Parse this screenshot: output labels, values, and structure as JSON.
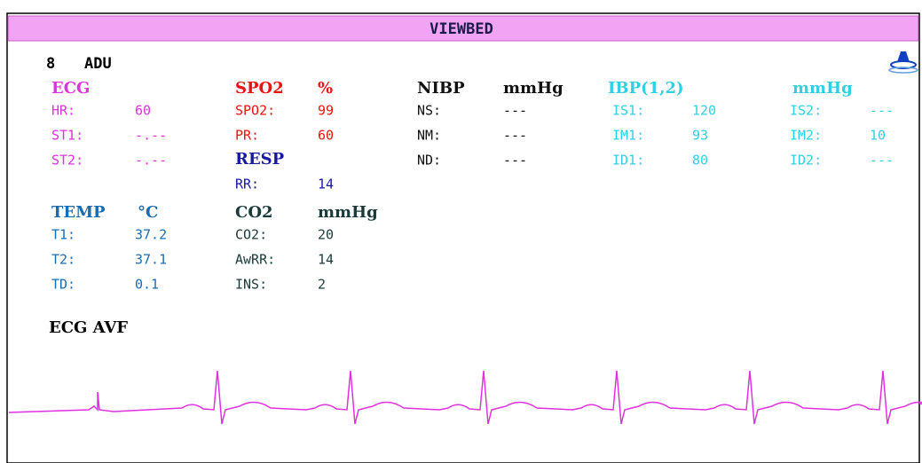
{
  "header": {
    "title": "VIEWBED"
  },
  "bed": {
    "number": "8",
    "category": "ADU"
  },
  "ecg": {
    "title": "ECG",
    "rows": [
      [
        "HR:",
        "60"
      ],
      [
        "ST1:",
        "-.--"
      ],
      [
        "ST2:",
        "-.--"
      ]
    ]
  },
  "spo2": {
    "title": "SPO2",
    "unit": "%",
    "rows": [
      [
        "SPO2:",
        "99"
      ],
      [
        "PR:",
        "60"
      ]
    ]
  },
  "resp": {
    "title": "RESP",
    "rows": [
      [
        "RR:",
        "14"
      ]
    ]
  },
  "temp": {
    "title": "TEMP",
    "unit": "°C",
    "rows": [
      [
        "T1:",
        "37.2"
      ],
      [
        "T2:",
        "37.1"
      ],
      [
        "TD:",
        "0.1"
      ]
    ]
  },
  "co2": {
    "title": "CO2",
    "unit": "mmHg",
    "rows": [
      [
        "CO2:",
        "20"
      ],
      [
        "AwRR:",
        "14"
      ],
      [
        "INS:",
        "2"
      ]
    ]
  },
  "nibp": {
    "title": "NIBP",
    "unit": "mmHg",
    "rows": [
      [
        "NS:",
        "---"
      ],
      [
        "NM:",
        "---"
      ],
      [
        "ND:",
        "---"
      ]
    ]
  },
  "ibp": {
    "title": "IBP(1,2)",
    "unit": "mmHg",
    "rows": [
      [
        "IS1:",
        "120"
      ],
      [
        "IM1:",
        "93"
      ],
      [
        "ID1:",
        "80"
      ]
    ],
    "rows2": [
      [
        "IS2:",
        "---"
      ],
      [
        "IM2:",
        "10"
      ],
      [
        "ID2:",
        "---"
      ]
    ]
  },
  "waveform": {
    "label": "ECG AVF"
  }
}
